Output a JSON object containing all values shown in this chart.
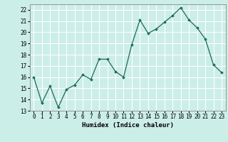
{
  "x": [
    0,
    1,
    2,
    3,
    4,
    5,
    6,
    7,
    8,
    9,
    10,
    11,
    12,
    13,
    14,
    15,
    16,
    17,
    18,
    19,
    20,
    21,
    22,
    23
  ],
  "y": [
    16.0,
    13.7,
    15.2,
    13.3,
    14.9,
    15.3,
    16.2,
    15.8,
    17.6,
    17.6,
    16.5,
    16.0,
    18.9,
    21.1,
    19.9,
    20.3,
    20.9,
    21.5,
    22.2,
    21.1,
    20.4,
    19.4,
    17.1,
    16.4
  ],
  "line_color": "#1a6b5a",
  "marker": "D",
  "marker_size": 1.8,
  "linewidth": 0.9,
  "xlabel": "Humidex (Indice chaleur)",
  "xlabel_fontsize": 6.5,
  "xlim": [
    -0.5,
    23.5
  ],
  "ylim": [
    13,
    22.5
  ],
  "yticks": [
    13,
    14,
    15,
    16,
    17,
    18,
    19,
    20,
    21,
    22
  ],
  "xtick_labels": [
    "0",
    "1",
    "2",
    "3",
    "4",
    "5",
    "6",
    "7",
    "8",
    "9",
    "10",
    "11",
    "12",
    "13",
    "14",
    "15",
    "16",
    "17",
    "18",
    "19",
    "20",
    "21",
    "22",
    "23"
  ],
  "background_color": "#cceee8",
  "grid_color": "#ffffff",
  "tick_fontsize": 5.5
}
